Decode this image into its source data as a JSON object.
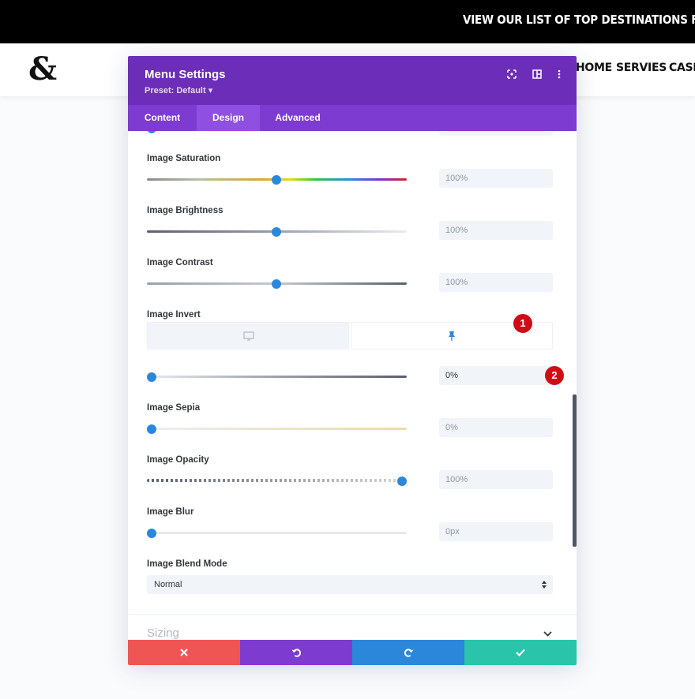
{
  "topbar": {
    "announcement": "VIEW OUR LIST OF TOP DESTINATIONS FOR THIS YEAR"
  },
  "header": {
    "logo": "&",
    "nav": [
      "HOME",
      "SERVIES",
      "CASE"
    ]
  },
  "modal": {
    "title": "Menu Settings",
    "preset": "Preset: Default ▾",
    "header_icons": [
      "fullscreen-icon",
      "split-view-icon",
      "more-options-icon"
    ],
    "tabs": [
      {
        "label": "Content",
        "active": false
      },
      {
        "label": "Design",
        "active": true
      },
      {
        "label": "Advanced",
        "active": false
      }
    ],
    "settings": {
      "saturation": {
        "label": "Image Saturation",
        "value": "100%"
      },
      "brightness": {
        "label": "Image Brightness",
        "value": "100%"
      },
      "contrast": {
        "label": "Image Contrast",
        "value": "100%"
      },
      "invert": {
        "label": "Image Invert",
        "value": "0%",
        "device_icons": [
          "desktop-icon",
          "pin-icon"
        ]
      },
      "sepia": {
        "label": "Image Sepia",
        "value": "0%"
      },
      "opacity": {
        "label": "Image Opacity",
        "value": "100%"
      },
      "blur": {
        "label": "Image Blur",
        "value": "0px"
      },
      "blend_mode": {
        "label": "Image Blend Mode",
        "value": "Normal"
      }
    },
    "collapsed_section": "Sizing",
    "badges": [
      "1",
      "2"
    ],
    "footer": {
      "cancel_icon": "close-icon",
      "undo_icon": "undo-icon",
      "redo_icon": "redo-icon",
      "save_icon": "check-icon"
    },
    "colors": {
      "header": "#6c2eb9",
      "tabs": "#7d3bd1",
      "accent": "#2b87da",
      "cancel": "#ef5555",
      "undo": "#7e3bd0",
      "redo": "#2b87da",
      "save": "#29c4a9",
      "badge": "#cf0d16"
    }
  }
}
